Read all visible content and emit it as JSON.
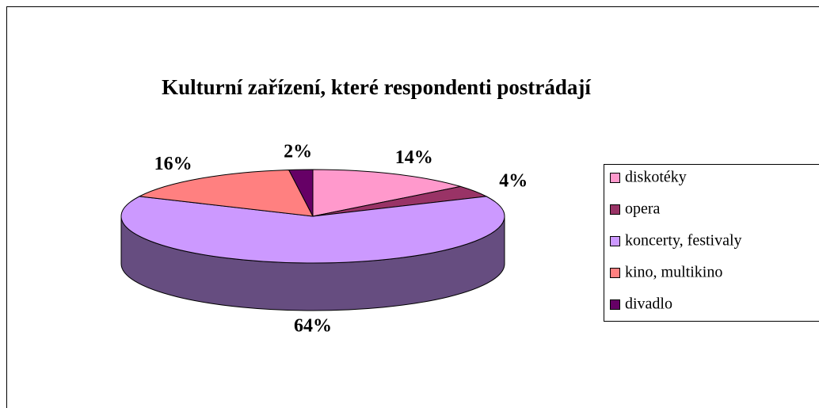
{
  "chart_data": {
    "type": "pie3d",
    "title": "Kulturní zařízení, které respondenti postrádají",
    "categories": [
      "diskotéky",
      "opera",
      "koncerty, festivaly",
      "kino, multikino",
      "divadlo"
    ],
    "values": [
      14,
      4,
      64,
      16,
      2
    ],
    "value_labels": [
      "14%",
      "4%",
      "64%",
      "16%",
      "2%"
    ],
    "colors": [
      "#ff99cc",
      "#993366",
      "#cc99ff",
      "#ff8080",
      "#660066"
    ],
    "legend": "right"
  }
}
